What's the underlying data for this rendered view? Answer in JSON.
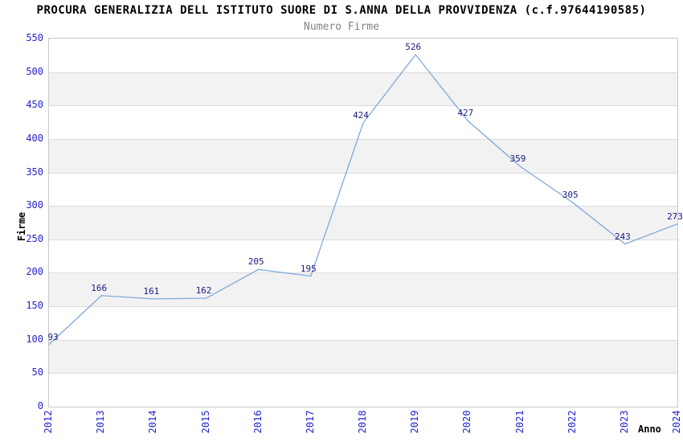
{
  "chart_data": {
    "type": "line",
    "title": "PROCURA GENERALIZIA DELL ISTITUTO SUORE DI S.ANNA DELLA PROVVIDENZA (c.f.97644190585)",
    "subtitle": "Numero Firme",
    "xlabel": "Anno",
    "ylabel": "Firme",
    "categories": [
      "2012",
      "2013",
      "2014",
      "2015",
      "2016",
      "2017",
      "2018",
      "2019",
      "2020",
      "2021",
      "2022",
      "2023",
      "2024"
    ],
    "values": [
      93,
      166,
      161,
      162,
      205,
      195,
      424,
      526,
      427,
      359,
      305,
      243,
      273
    ],
    "ylim": [
      0,
      550
    ],
    "ytick_step": 50,
    "grid": true,
    "banded_background": true,
    "legend": "none",
    "colors": {
      "line": "#7fa9db",
      "tick_label": "#2323cc",
      "value_label": "#1a1a80",
      "band": "#f2f2f2",
      "grid": "#dcdcdc",
      "frame": "#c9c9c9",
      "title": "#000000",
      "subtitle": "#828282",
      "axis_title": "#000000"
    }
  }
}
